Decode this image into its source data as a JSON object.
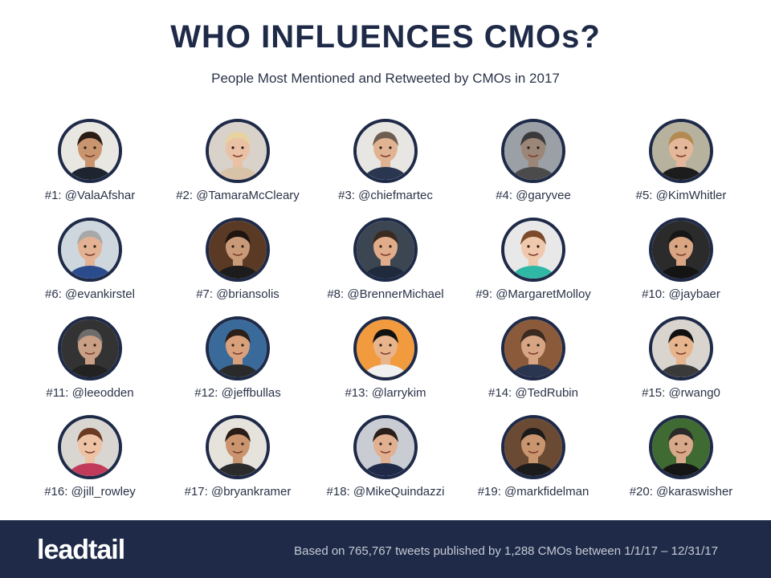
{
  "header": {
    "title": "WHO INFLUENCES CMOs?",
    "subtitle": "People Most Mentioned and Retweeted by CMOs in 2017"
  },
  "influencers": [
    {
      "label": "#1: @ValaAfshar",
      "bg": "#e9e7e2",
      "skin": "#c9956f",
      "hair": "#2a1d15",
      "shirt": "#1f2530"
    },
    {
      "label": "#2: @TamaraMcCleary",
      "bg": "#d8d2cb",
      "skin": "#eac1a4",
      "hair": "#e6d3a0",
      "shirt": "#d9c3a8"
    },
    {
      "label": "#3: @chiefmartec",
      "bg": "#e8e6e2",
      "skin": "#e0b392",
      "hair": "#6e5d50",
      "shirt": "#2a3550"
    },
    {
      "label": "#4: @garyvee",
      "bg": "#9aa0a6",
      "skin": "#9b8677",
      "hair": "#3a3a3a",
      "shirt": "#4b4b4b"
    },
    {
      "label": "#5: @KimWhitler",
      "bg": "#b7b29d",
      "skin": "#e4b79a",
      "hair": "#b48a53",
      "shirt": "#1c1c1c"
    },
    {
      "label": "#6: @evankirstel",
      "bg": "#cfd7de",
      "skin": "#e3b294",
      "hair": "#a8a8a8",
      "shirt": "#2b4c8c"
    },
    {
      "label": "#7: @briansolis",
      "bg": "#5a3a25",
      "skin": "#c99a78",
      "hair": "#1f1410",
      "shirt": "#1c1c1c"
    },
    {
      "label": "#8: @BrennerMichael",
      "bg": "#3c4652",
      "skin": "#e1ac8a",
      "hair": "#3b2a20",
      "shirt": "#1f2a3c"
    },
    {
      "label": "#9: @MargaretMolloy",
      "bg": "#e8e8e8",
      "skin": "#f0c8ad",
      "hair": "#7a4a2a",
      "shirt": "#2fb8a5"
    },
    {
      "label": "#10: @jaybaer",
      "bg": "#2b2b2b",
      "skin": "#d9a583",
      "hair": "#161616",
      "shirt": "#141414"
    },
    {
      "label": "#11: @leeodden",
      "bg": "#333333",
      "skin": "#c9a085",
      "hair": "#6d6d6d",
      "shirt": "#222222"
    },
    {
      "label": "#12: @jeffbullas",
      "bg": "#3a6a9a",
      "skin": "#d9a07c",
      "hair": "#2b1f18",
      "shirt": "#2a2a2a"
    },
    {
      "label": "#13: @larrykim",
      "bg": "#f19a3e",
      "skin": "#e8b48c",
      "hair": "#111111",
      "shirt": "#f0f0f0"
    },
    {
      "label": "#14: @TedRubin",
      "bg": "#8a5a3a",
      "skin": "#d8a584",
      "hair": "#3a2a20",
      "shirt": "#2a3550"
    },
    {
      "label": "#15: @rwang0",
      "bg": "#d9d4ce",
      "skin": "#e6b48d",
      "hair": "#111111",
      "shirt": "#3a3a3a"
    },
    {
      "label": "#16: @jill_rowley",
      "bg": "#d9d6d2",
      "skin": "#eec2a4",
      "hair": "#6a3a22",
      "shirt": "#c23a5a"
    },
    {
      "label": "#17: @bryankramer",
      "bg": "#e6e2dc",
      "skin": "#c9946e",
      "hair": "#2a1d15",
      "shirt": "#2b2b2b"
    },
    {
      "label": "#18: @MikeQuindazzi",
      "bg": "#c9ccd2",
      "skin": "#e0b090",
      "hair": "#2a1e18",
      "shirt": "#1e2a47"
    },
    {
      "label": "#19: @markfidelman",
      "bg": "#6a4a32",
      "skin": "#c9956f",
      "hair": "#1a1a1a",
      "shirt": "#1b1b1b"
    },
    {
      "label": "#20: @karaswisher",
      "bg": "#3f6a32",
      "skin": "#d8a88a",
      "hair": "#2a2a2a",
      "shirt": "#151515"
    }
  ],
  "footer": {
    "logo": "leadtail",
    "note": "Based on 765,767 tweets published by 1,288 CMOs between 1/1/17 – 12/31/17"
  },
  "colors": {
    "navy": "#1e2a47",
    "footer_text": "#c5cad6"
  }
}
